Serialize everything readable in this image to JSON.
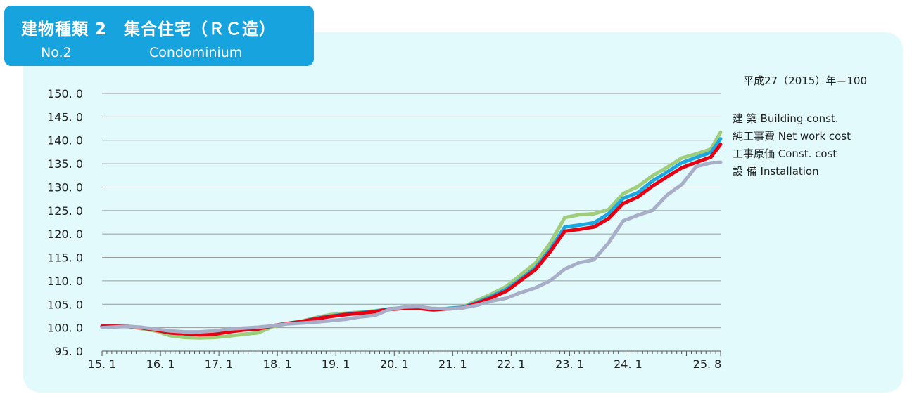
{
  "header": {
    "title_ja": "建物種類 2　集合住宅（ＲＣ造）",
    "title_no": "No.2",
    "title_en": "Condominium"
  },
  "colors": {
    "header_bg": "#17a3dd",
    "panel_bg": "#e2fafc",
    "grid": "#9a9a9a"
  },
  "chart_data": {
    "type": "line",
    "base_label": "平成27（2015）年＝100",
    "ylim": [
      95,
      150
    ],
    "y_ticks": [
      "95. 0",
      "100. 0",
      "105. 0",
      "110. 0",
      "115. 0",
      "120. 0",
      "125. 0",
      "130. 0",
      "135. 0",
      "140. 0",
      "145. 0",
      "150. 0"
    ],
    "x_tick_labels": [
      "15. 1",
      "16. 1",
      "17. 1",
      "18. 1",
      "19. 1",
      "20. 1",
      "21. 1",
      "22. 1",
      "23. 1",
      "24. 1",
      "25. 8"
    ],
    "x_start": "2015-01",
    "x_end": "2025-08",
    "grid": true,
    "legend_position": "right",
    "series": [
      {
        "name": "建 築  Building const.",
        "color": "#9fcd7a",
        "points": [
          [
            "2015-01",
            100.3
          ],
          [
            "2015-06",
            100.4
          ],
          [
            "2015-09",
            99.8
          ],
          [
            "2015-12",
            99.3
          ],
          [
            "2016-03",
            98.3
          ],
          [
            "2016-06",
            97.9
          ],
          [
            "2016-09",
            97.8
          ],
          [
            "2016-12",
            97.9
          ],
          [
            "2017-03",
            98.2
          ],
          [
            "2017-06",
            98.6
          ],
          [
            "2017-09",
            98.9
          ],
          [
            "2017-12",
            100.2
          ],
          [
            "2018-03",
            100.9
          ],
          [
            "2018-06",
            101.4
          ],
          [
            "2018-09",
            102.2
          ],
          [
            "2018-12",
            102.8
          ],
          [
            "2019-03",
            103.1
          ],
          [
            "2019-06",
            103.3
          ],
          [
            "2019-09",
            103.6
          ],
          [
            "2019-12",
            104.0
          ],
          [
            "2020-03",
            104.3
          ],
          [
            "2020-06",
            104.3
          ],
          [
            "2020-09",
            103.9
          ],
          [
            "2020-12",
            104.1
          ],
          [
            "2021-03",
            104.4
          ],
          [
            "2021-06",
            105.8
          ],
          [
            "2021-09",
            107.2
          ],
          [
            "2021-12",
            108.8
          ],
          [
            "2022-03",
            111.3
          ],
          [
            "2022-06",
            113.8
          ],
          [
            "2022-09",
            118.0
          ],
          [
            "2022-12",
            123.5
          ],
          [
            "2023-03",
            124.1
          ],
          [
            "2023-06",
            124.3
          ],
          [
            "2023-09",
            125.2
          ],
          [
            "2023-12",
            128.6
          ],
          [
            "2024-03",
            130.1
          ],
          [
            "2024-06",
            132.4
          ],
          [
            "2024-09",
            134.2
          ],
          [
            "2024-12",
            136.2
          ],
          [
            "2025-03",
            137.1
          ],
          [
            "2025-06",
            138.1
          ],
          [
            "2025-08",
            141.7
          ]
        ]
      },
      {
        "name": "純工事費  Net work cost",
        "color": "#1aa7e2",
        "points": [
          [
            "2015-01",
            100.3
          ],
          [
            "2015-06",
            100.3
          ],
          [
            "2015-09",
            100.0
          ],
          [
            "2015-12",
            99.6
          ],
          [
            "2016-03",
            98.9
          ],
          [
            "2016-06",
            98.7
          ],
          [
            "2016-09",
            98.5
          ],
          [
            "2016-12",
            98.7
          ],
          [
            "2017-03",
            99.2
          ],
          [
            "2017-06",
            99.6
          ],
          [
            "2017-09",
            99.7
          ],
          [
            "2017-12",
            100.4
          ],
          [
            "2018-03",
            100.9
          ],
          [
            "2018-06",
            101.3
          ],
          [
            "2018-09",
            102.0
          ],
          [
            "2018-12",
            102.5
          ],
          [
            "2019-03",
            102.9
          ],
          [
            "2019-06",
            103.2
          ],
          [
            "2019-09",
            103.5
          ],
          [
            "2019-12",
            104.0
          ],
          [
            "2020-03",
            104.2
          ],
          [
            "2020-06",
            104.2
          ],
          [
            "2020-09",
            103.9
          ],
          [
            "2020-12",
            104.1
          ],
          [
            "2021-03",
            104.3
          ],
          [
            "2021-06",
            105.4
          ],
          [
            "2021-09",
            106.7
          ],
          [
            "2021-12",
            108.2
          ],
          [
            "2022-03",
            110.4
          ],
          [
            "2022-06",
            112.8
          ],
          [
            "2022-09",
            116.7
          ],
          [
            "2022-12",
            121.5
          ],
          [
            "2023-03",
            121.9
          ],
          [
            "2023-06",
            122.4
          ],
          [
            "2023-09",
            124.3
          ],
          [
            "2023-12",
            127.6
          ],
          [
            "2024-03",
            128.8
          ],
          [
            "2024-06",
            131.3
          ],
          [
            "2024-09",
            133.2
          ],
          [
            "2024-12",
            135.2
          ],
          [
            "2025-03",
            136.3
          ],
          [
            "2025-06",
            137.4
          ],
          [
            "2025-08",
            140.3
          ]
        ]
      },
      {
        "name": "工事原価  Const. cost",
        "color": "#e60012",
        "points": [
          [
            "2015-01",
            100.3
          ],
          [
            "2015-06",
            100.3
          ],
          [
            "2015-09",
            100.0
          ],
          [
            "2015-12",
            99.5
          ],
          [
            "2016-03",
            98.9
          ],
          [
            "2016-06",
            98.7
          ],
          [
            "2016-09",
            98.5
          ],
          [
            "2016-12",
            98.6
          ],
          [
            "2017-03",
            99.1
          ],
          [
            "2017-06",
            99.5
          ],
          [
            "2017-09",
            99.7
          ],
          [
            "2017-12",
            100.4
          ],
          [
            "2018-03",
            100.9
          ],
          [
            "2018-06",
            101.3
          ],
          [
            "2018-09",
            101.9
          ],
          [
            "2018-12",
            102.4
          ],
          [
            "2019-03",
            102.8
          ],
          [
            "2019-06",
            103.1
          ],
          [
            "2019-09",
            103.4
          ],
          [
            "2019-12",
            103.9
          ],
          [
            "2020-03",
            104.1
          ],
          [
            "2020-06",
            104.1
          ],
          [
            "2020-09",
            103.8
          ],
          [
            "2020-12",
            104.0
          ],
          [
            "2021-03",
            104.2
          ],
          [
            "2021-06",
            105.2
          ],
          [
            "2021-09",
            106.4
          ],
          [
            "2021-12",
            107.8
          ],
          [
            "2022-03",
            110.1
          ],
          [
            "2022-06",
            112.4
          ],
          [
            "2022-09",
            116.2
          ],
          [
            "2022-12",
            120.6
          ],
          [
            "2023-03",
            121.0
          ],
          [
            "2023-06",
            121.5
          ],
          [
            "2023-09",
            123.3
          ],
          [
            "2023-12",
            126.5
          ],
          [
            "2024-03",
            127.9
          ],
          [
            "2024-06",
            130.2
          ],
          [
            "2024-09",
            132.2
          ],
          [
            "2024-12",
            134.1
          ],
          [
            "2025-03",
            135.3
          ],
          [
            "2025-06",
            136.4
          ],
          [
            "2025-08",
            139.1
          ]
        ]
      },
      {
        "name": "設 備  Installation",
        "color": "#a8aec7",
        "points": [
          [
            "2015-01",
            100.0
          ],
          [
            "2015-06",
            100.3
          ],
          [
            "2015-09",
            100.1
          ],
          [
            "2015-12",
            99.7
          ],
          [
            "2016-03",
            99.3
          ],
          [
            "2016-06",
            99.1
          ],
          [
            "2016-09",
            99.1
          ],
          [
            "2016-12",
            99.3
          ],
          [
            "2017-03",
            99.7
          ],
          [
            "2017-06",
            99.9
          ],
          [
            "2017-09",
            100.1
          ],
          [
            "2017-12",
            100.4
          ],
          [
            "2018-03",
            100.8
          ],
          [
            "2018-06",
            101.0
          ],
          [
            "2018-09",
            101.2
          ],
          [
            "2018-12",
            101.5
          ],
          [
            "2019-03",
            101.8
          ],
          [
            "2019-06",
            102.3
          ],
          [
            "2019-09",
            102.6
          ],
          [
            "2019-12",
            103.9
          ],
          [
            "2020-03",
            104.4
          ],
          [
            "2020-06",
            104.5
          ],
          [
            "2020-09",
            104.1
          ],
          [
            "2020-12",
            104.0
          ],
          [
            "2021-03",
            104.2
          ],
          [
            "2021-06",
            104.8
          ],
          [
            "2021-09",
            105.7
          ],
          [
            "2021-12",
            106.3
          ],
          [
            "2022-03",
            107.5
          ],
          [
            "2022-06",
            108.5
          ],
          [
            "2022-09",
            110.0
          ],
          [
            "2022-12",
            112.5
          ],
          [
            "2023-03",
            113.9
          ],
          [
            "2023-06",
            114.5
          ],
          [
            "2023-09",
            118.1
          ],
          [
            "2023-12",
            122.8
          ],
          [
            "2024-03",
            124.0
          ],
          [
            "2024-06",
            125.0
          ],
          [
            "2024-09",
            128.3
          ],
          [
            "2024-12",
            130.5
          ],
          [
            "2025-03",
            134.4
          ],
          [
            "2025-06",
            135.2
          ],
          [
            "2025-08",
            135.3
          ]
        ]
      }
    ]
  }
}
